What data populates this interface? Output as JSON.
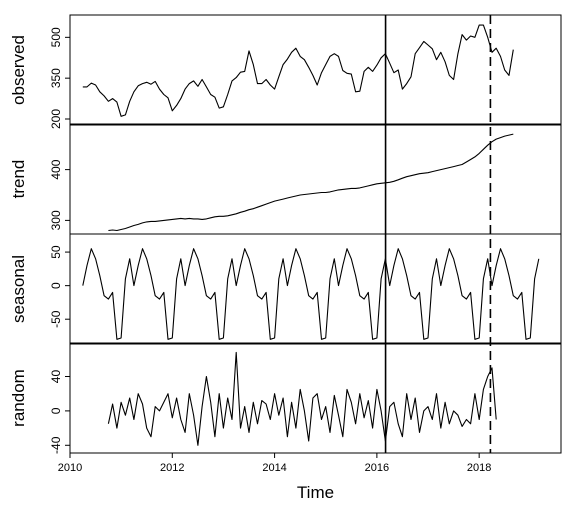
{
  "chart_data": {
    "type": "line",
    "title": "",
    "xlabel": "Time",
    "xlim": [
      2010.0,
      2019.6
    ],
    "x_ticks": [
      "2010",
      "2012",
      "2014",
      "2016",
      "2018"
    ],
    "x_tick_values": [
      2010,
      2012,
      2014,
      2016,
      2018
    ],
    "vlines": [
      {
        "x": 2016.17,
        "style": "solid"
      },
      {
        "x": 2018.22,
        "style": "dashed"
      }
    ],
    "panels": [
      {
        "id": "observed",
        "ylabel": "observed",
        "ylim": [
          200,
          560
        ],
        "y_ticks": [
          "200",
          "350",
          "500"
        ],
        "y_tick_values": [
          200,
          350,
          500
        ],
        "x_start": 2010.25,
        "step": 0.083333,
        "values": [
          318,
          318,
          332,
          325,
          300,
          285,
          265,
          275,
          262,
          210,
          215,
          265,
          300,
          322,
          330,
          335,
          328,
          338,
          310,
          290,
          278,
          230,
          250,
          275,
          310,
          330,
          340,
          320,
          345,
          318,
          290,
          280,
          240,
          245,
          290,
          340,
          352,
          372,
          375,
          450,
          400,
          330,
          330,
          345,
          325,
          310,
          355,
          400,
          420,
          445,
          460,
          430,
          418,
          390,
          360,
          325,
          370,
          400,
          430,
          440,
          430,
          378,
          368,
          365,
          300,
          302,
          375,
          390,
          375,
          398,
          425,
          440,
          405,
          370,
          380,
          310,
          330,
          355,
          440,
          462,
          485,
          472,
          458,
          418,
          445,
          410,
          360,
          345,
          440,
          510,
          490,
          505,
          500,
          545,
          545,
          500,
          445,
          460,
          430,
          380,
          360,
          455
        ]
      },
      {
        "id": "trend",
        "ylabel": "trend",
        "ylim": [
          285,
          478
        ],
        "y_ticks": [
          "300",
          "400"
        ],
        "y_tick_values": [
          300,
          400
        ],
        "x_start": 2010.75,
        "step": 0.083333,
        "values": [
          280,
          281,
          280,
          282,
          284,
          287,
          290,
          292,
          295,
          297,
          298,
          298,
          299,
          300,
          301,
          302,
          303,
          304,
          303,
          304,
          303,
          303,
          302,
          303,
          305,
          307,
          308,
          308,
          309,
          311,
          313,
          316,
          318,
          321,
          323,
          326,
          329,
          332,
          335,
          338,
          340,
          342,
          344,
          346,
          348,
          350,
          351,
          352,
          353,
          354,
          355,
          355,
          356,
          358,
          360,
          361,
          362,
          363,
          363,
          364,
          366,
          368,
          370,
          372,
          373,
          374,
          375,
          377,
          380,
          383,
          386,
          388,
          390,
          392,
          393,
          394,
          396,
          398,
          400,
          402,
          404,
          406,
          408,
          410,
          415,
          420,
          425,
          432,
          440,
          448,
          455,
          460,
          463,
          466,
          468,
          470
        ]
      },
      {
        "id": "seasonal",
        "ylabel": "seasonal",
        "ylim": [
          -78,
          68
        ],
        "y_ticks": [
          "-50",
          "0",
          "50"
        ],
        "y_tick_values": [
          -50,
          0,
          50
        ],
        "x_start": 2010.25,
        "step": 0.083333,
        "period": 12,
        "pattern": [
          0,
          30,
          55,
          40,
          15,
          -15,
          -20,
          -10,
          -80,
          -78,
          10,
          40
        ],
        "n_points": 108
      },
      {
        "id": "random",
        "ylabel": "random",
        "ylim": [
          -42,
          72
        ],
        "y_ticks": [
          "-40",
          "0",
          "40"
        ],
        "y_tick_values": [
          -40,
          0,
          40
        ],
        "x_start": 2010.75,
        "step": 0.083333,
        "values": [
          -15,
          8,
          -20,
          10,
          -5,
          15,
          -10,
          20,
          8,
          -20,
          -30,
          5,
          0,
          10,
          20,
          -8,
          15,
          -10,
          -25,
          20,
          -5,
          -40,
          5,
          40,
          10,
          -30,
          20,
          -20,
          15,
          -10,
          68,
          -20,
          5,
          -25,
          10,
          -15,
          12,
          8,
          -10,
          20,
          -5,
          15,
          -30,
          10,
          -20,
          25,
          0,
          -35,
          15,
          20,
          -10,
          5,
          -25,
          18,
          -5,
          -30,
          25,
          10,
          -15,
          20,
          -8,
          12,
          -20,
          25,
          0,
          -35,
          5,
          10,
          -15,
          -30,
          20,
          -10,
          15,
          -25,
          0,
          5,
          -10,
          20,
          -20,
          10,
          -15,
          0,
          -5,
          -18,
          -10,
          -15,
          20,
          -10,
          25,
          40,
          50,
          -10
        ]
      }
    ]
  }
}
